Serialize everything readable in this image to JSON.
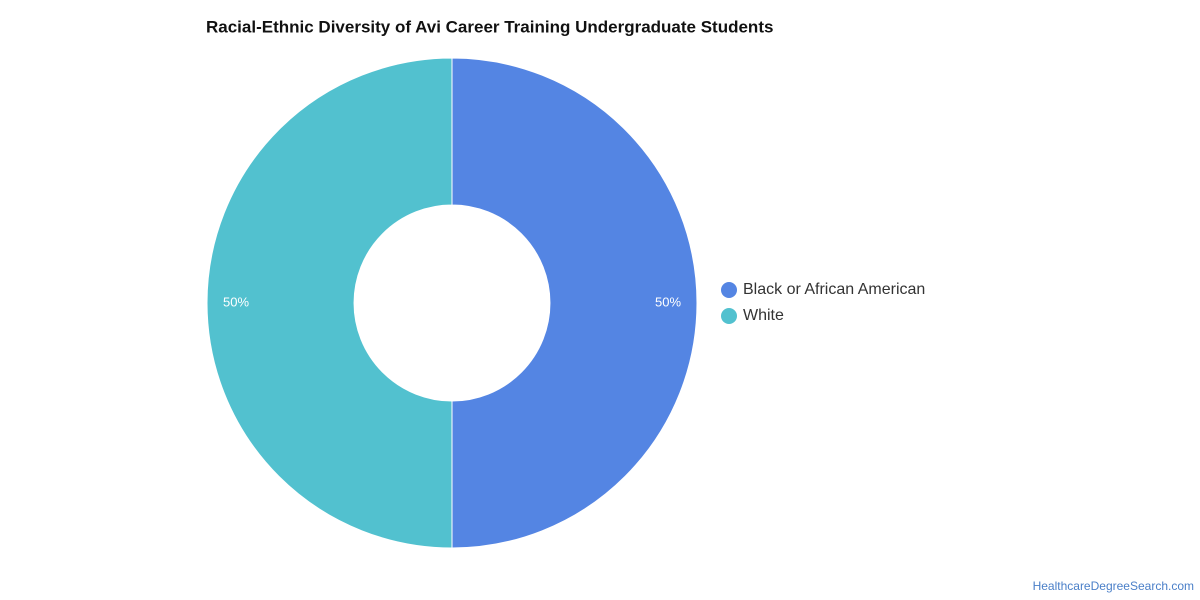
{
  "chart_data": {
    "type": "pie",
    "title": "Racial-Ethnic Diversity of Avi Career Training Undergraduate Students",
    "categories": [
      "Black or African American",
      "White"
    ],
    "values": [
      50,
      50
    ],
    "value_labels": [
      "50%",
      "50%"
    ],
    "colors": [
      "#5485e3",
      "#52c1cf"
    ],
    "legend": "right"
  },
  "source": "HealthcareDegreeSearch.com"
}
